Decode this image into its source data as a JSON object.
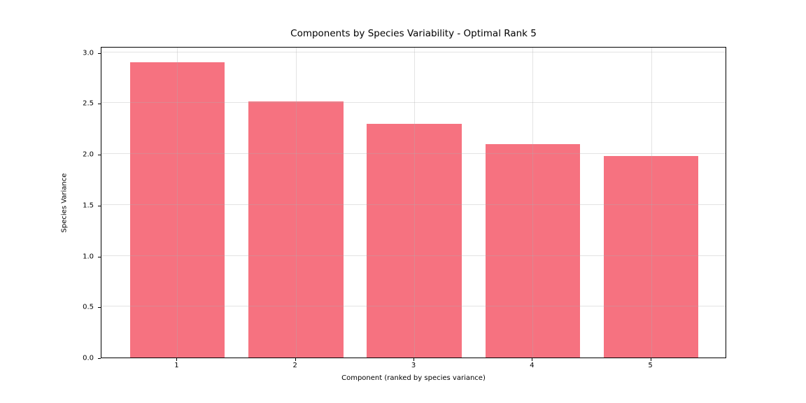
{
  "chart_data": {
    "type": "bar",
    "title": "Components by Species Variability - Optimal Rank 5",
    "xlabel": "Component (ranked by species variance)",
    "ylabel": "Species Variance",
    "categories": [
      "1",
      "2",
      "3",
      "4",
      "5"
    ],
    "values": [
      2.9,
      2.52,
      2.3,
      2.1,
      1.98
    ],
    "yticks": [
      "0.0",
      "0.5",
      "1.0",
      "1.5",
      "2.0",
      "2.5",
      "3.0"
    ],
    "ytick_values": [
      0.0,
      0.5,
      1.0,
      1.5,
      2.0,
      2.5,
      3.0
    ],
    "ylim": [
      0,
      3.06
    ],
    "bar_color": "#f67280",
    "grid": true,
    "legend": "none",
    "background_color": "#ffffff",
    "spine_color": "#000000"
  }
}
